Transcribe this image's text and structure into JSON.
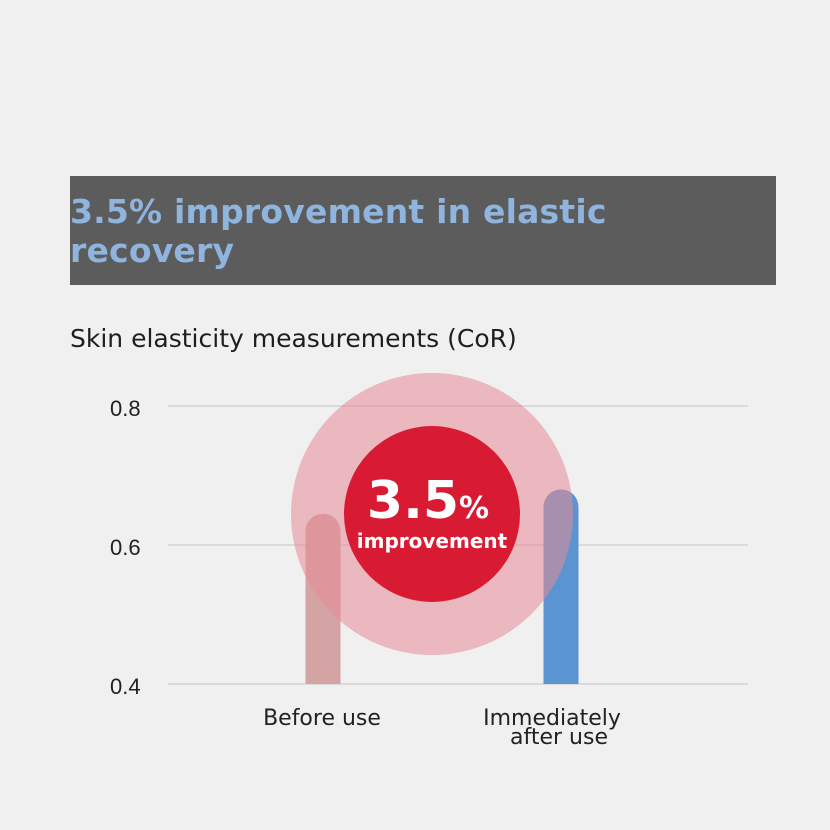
{
  "banner": {
    "title": "3.5% improvement in elastic recovery"
  },
  "subtitle": "Skin elasticity measurements (CoR)",
  "callout": {
    "value": "3.5",
    "unit": "%",
    "label": "improvement"
  },
  "colors": {
    "before_bar": "#d4a3a3",
    "after_bar": "#5b95d1",
    "callout_inner": "#d81b33",
    "callout_outer": "#e58a96",
    "banner_bg": "#5c5c5c",
    "banner_text": "#8fb4de"
  },
  "chart_data": {
    "type": "bar",
    "categories": [
      "Before use",
      "Immediately\nafter use"
    ],
    "values": [
      0.645,
      0.68
    ],
    "ylim": [
      0.4,
      0.8
    ],
    "yticks": [
      "0.8",
      "0.6",
      "0.4"
    ],
    "grid": true
  }
}
